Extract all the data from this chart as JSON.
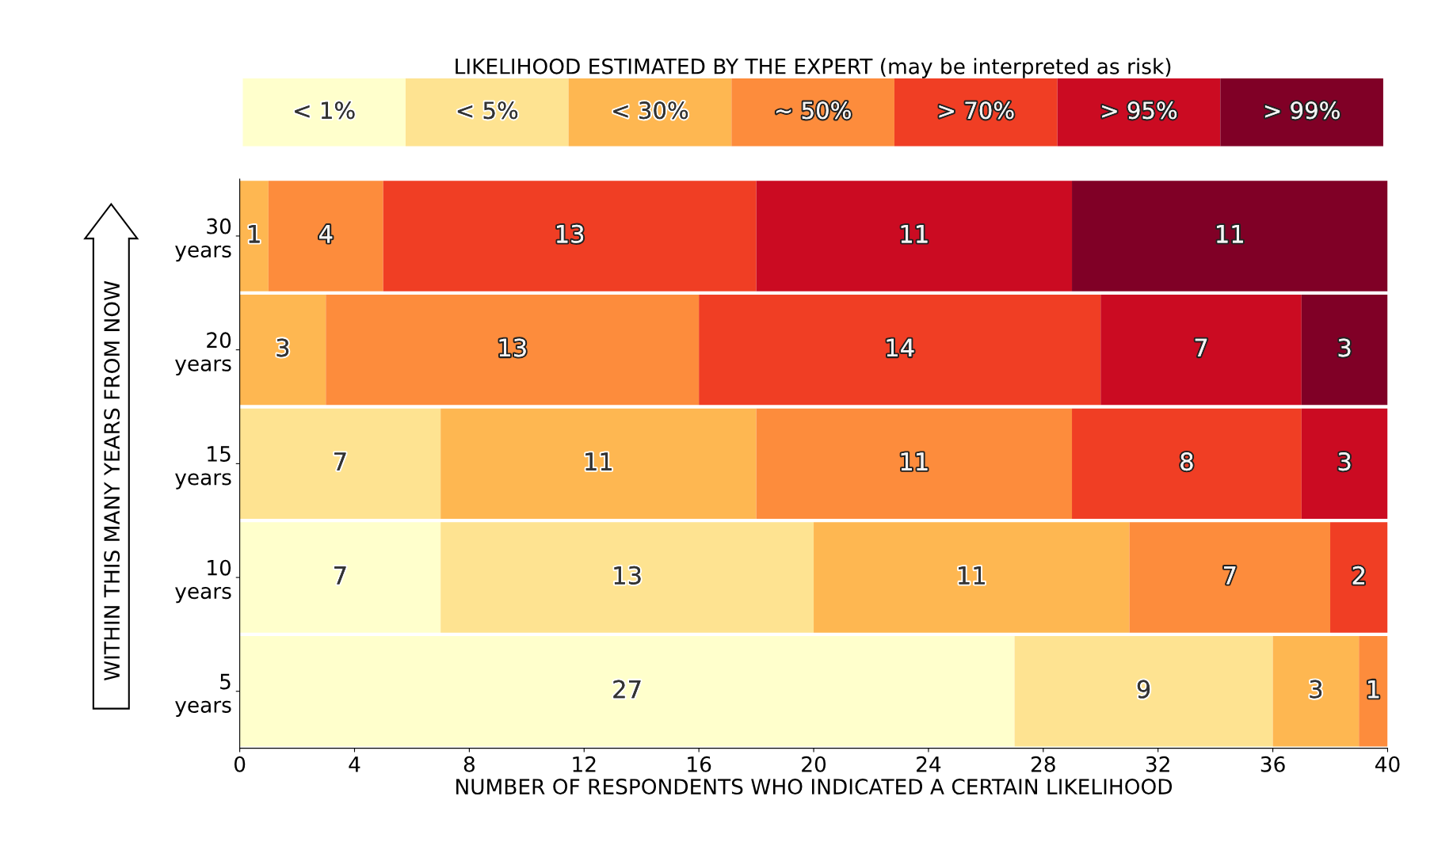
{
  "chart_data": {
    "type": "bar",
    "orientation": "horizontal",
    "stacked": true,
    "data_labels": true,
    "legend": "top",
    "legend_title": "LIKELIHOOD ESTIMATED BY THE EXPERT (may be interpreted as risk)",
    "xlabel": "NUMBER OF RESPONDENTS WHO INDICATED A CERTAIN LIKELIHOOD",
    "ylabel": "WITHIN THIS MANY YEARS FROM NOW",
    "categories": [
      "30\nyears",
      "20\nyears",
      "15\nyears",
      "10\nyears",
      "5\nyears"
    ],
    "xlim": [
      0,
      40
    ],
    "xticks": [
      0,
      4,
      8,
      12,
      16,
      20,
      24,
      28,
      32,
      36,
      40
    ],
    "series": [
      {
        "name": "< 1%",
        "color": "#ffffcc",
        "values": [
          null,
          null,
          null,
          7,
          27
        ]
      },
      {
        "name": "< 5%",
        "color": "#fee391",
        "values": [
          null,
          null,
          7,
          13,
          9
        ]
      },
      {
        "name": "< 30%",
        "color": "#feb751",
        "values": [
          1,
          3,
          11,
          11,
          3
        ]
      },
      {
        "name": "~ 50%",
        "color": "#fd8c3c",
        "values": [
          4,
          13,
          11,
          7,
          1
        ]
      },
      {
        "name": "> 70%",
        "color": "#f03e24",
        "values": [
          13,
          14,
          8,
          2,
          null
        ]
      },
      {
        "name": "> 95%",
        "color": "#cb0b22",
        "values": [
          11,
          7,
          3,
          null,
          null
        ]
      },
      {
        "name": "> 99%",
        "color": "#800026",
        "values": [
          11,
          3,
          null,
          null,
          null
        ]
      }
    ]
  }
}
